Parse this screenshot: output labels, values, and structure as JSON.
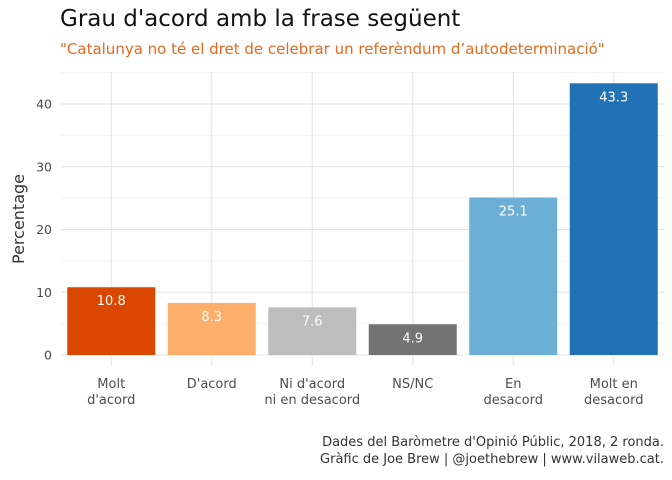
{
  "chart_data": {
    "type": "bar",
    "title": "Grau d'acord amb la frase següent",
    "subtitle": "\"Catalunya no té el dret de celebrar un referèndum d’autodeterminació\"",
    "xlabel": "",
    "ylabel": "Percentage",
    "ylim": [
      0,
      45
    ],
    "yticks": [
      "0",
      "10",
      "20",
      "30",
      "40"
    ],
    "categories": [
      [
        "Molt",
        "d'acord"
      ],
      [
        "D'acord"
      ],
      [
        "Ni d'acord",
        "ni en desacord"
      ],
      [
        "NS/NC"
      ],
      [
        "En",
        "desacord"
      ],
      [
        "Molt en",
        "desacord"
      ]
    ],
    "values": [
      10.8,
      8.3,
      7.6,
      4.9,
      25.1,
      43.3
    ],
    "value_labels": [
      "10.8",
      "8.3",
      "7.6",
      "4.9",
      "25.1",
      "43.3"
    ],
    "colors": [
      "#d94701",
      "#fdae6b",
      "#bdbdbd",
      "#737373",
      "#6baed6",
      "#2171b5"
    ],
    "grid": true,
    "legend": "none",
    "caption": [
      "Dades del Baròmetre d'Opinió Públic, 2018, 2 ronda.",
      "Gràfic de Joe Brew | @joethebrew | www.vilaweb.cat."
    ]
  }
}
